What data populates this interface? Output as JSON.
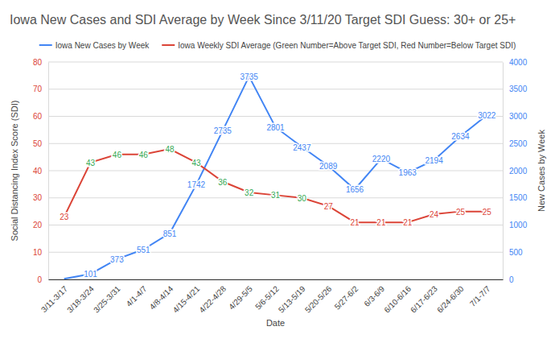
{
  "chart_data": {
    "type": "line",
    "title": "Iowa New Cases and SDI Average by Week Since 3/11/20 Target SDI Guess: 30+ or 25+",
    "x_label": "Date",
    "y_label": "Social Distancing Index Score (SDI)",
    "y2_label": "New Cases by Week",
    "categories": [
      "3/11-3/17",
      "3/18-3/24",
      "3/25-3/31",
      "4/1-4/7",
      "4/8-4/14",
      "4/15-4/21",
      "4/22-4/28",
      "4/29-5/5",
      "5/6-5/12",
      "5/13-5/19",
      "5/20-5/26",
      "5/27-6/2",
      "6/3-6/9",
      "6/10-6/16",
      "6/17-6/23",
      "6/24-6/30",
      "7/1-7/7"
    ],
    "series": [
      {
        "name": "Iowa New Cases by Week",
        "color": "#4285f4",
        "axis": "y2",
        "values": [
          10,
          101,
          373,
          551,
          851,
          1742,
          2735,
          3735,
          2801,
          2437,
          2089,
          1656,
          2220,
          1963,
          2194,
          2634,
          3022
        ],
        "value_labels": [
          null,
          "101",
          "373",
          "551",
          "851",
          "1742",
          "2735",
          "3735",
          "2801",
          "2437",
          "2089",
          "1656",
          "2220",
          "1963",
          "2194",
          "2634",
          "3022"
        ]
      },
      {
        "name": "Iowa Weekly SDI Average (Green Number=Above Target SDI, Red Number=Below Target SDI)",
        "color": "#db4437",
        "values": [
          23,
          43,
          46,
          46,
          48,
          43,
          36,
          32,
          31,
          30,
          27,
          21,
          21,
          21,
          24,
          25,
          25
        ],
        "colors": [
          "#db4437",
          "#34a853",
          "#34a853",
          "#34a853",
          "#34a853",
          "#34a853",
          "#34a853",
          "#34a853",
          "#34a853",
          "#34a853",
          "#db4437",
          "#db4437",
          "#db4437",
          "#db4437",
          "#db4437",
          "#db4437",
          "#db4437"
        ]
      }
    ],
    "ylim": [
      0,
      80
    ],
    "yticks": [
      0,
      10,
      20,
      30,
      40,
      50,
      60,
      70,
      80
    ],
    "y2lim": [
      0,
      4000
    ],
    "y2ticks": [
      0,
      500,
      1000,
      1500,
      2000,
      2500,
      3000,
      3500,
      4000
    ],
    "grid": true,
    "legend": "top",
    "data_labels": true
  }
}
